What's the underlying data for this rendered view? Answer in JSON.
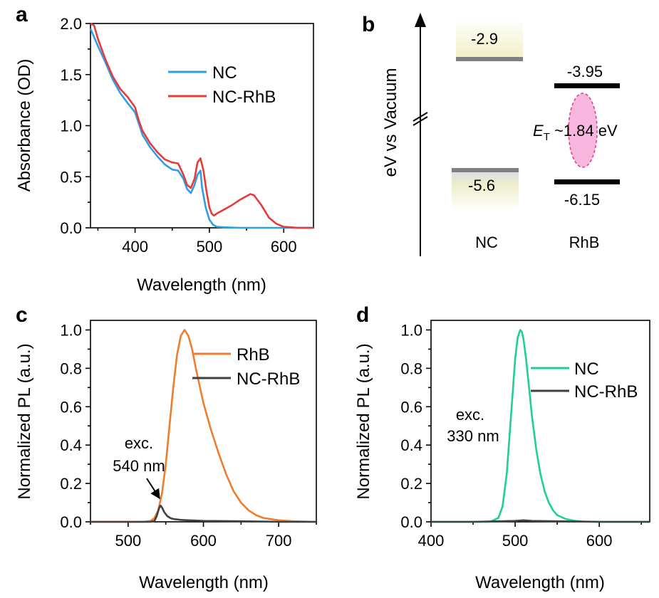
{
  "panels": {
    "a": {
      "letter": "a",
      "chart_data": {
        "type": "line",
        "title": "",
        "xlabel": "Wavelength (nm)",
        "ylabel": "Absorbance (OD)",
        "xlim": [
          340,
          640
        ],
        "ylim": [
          0,
          2.0
        ],
        "xticks": [
          400,
          500,
          600
        ],
        "yticks": [
          0.0,
          0.5,
          1.0,
          1.5,
          2.0
        ],
        "ytick_labels": [
          "0.0",
          "0.5",
          "1.0",
          "1.5",
          "2.0"
        ],
        "legend_position": "top-right",
        "series": [
          {
            "name": "NC",
            "color": "#2f9ee6",
            "x": [
              340,
              350,
              360,
              370,
              380,
              390,
              400,
              405,
              410,
              420,
              430,
              440,
              450,
              458,
              465,
              470,
              475,
              480,
              484,
              488,
              490,
              495,
              500,
              505,
              510,
              520,
              540,
              560,
              580,
              600,
              620,
              640
            ],
            "y": [
              1.95,
              1.78,
              1.62,
              1.45,
              1.32,
              1.22,
              1.13,
              1.02,
              0.91,
              0.79,
              0.7,
              0.62,
              0.57,
              0.56,
              0.48,
              0.38,
              0.34,
              0.42,
              0.52,
              0.56,
              0.4,
              0.2,
              0.08,
              0.03,
              0.01,
              0.005,
              0.0,
              0.0,
              0.0,
              0.0,
              0.0,
              0.0
            ]
          },
          {
            "name": "NC-RhB",
            "color": "#e63b3b",
            "x": [
              340,
              345,
              350,
              360,
              370,
              380,
              390,
              400,
              405,
              410,
              420,
              430,
              440,
              450,
              458,
              465,
              470,
              475,
              480,
              484,
              488,
              492,
              496,
              500,
              503,
              506,
              510,
              520,
              530,
              540,
              550,
              555,
              560,
              570,
              580,
              590,
              600,
              620,
              640
            ],
            "y": [
              2.0,
              1.98,
              1.85,
              1.65,
              1.48,
              1.36,
              1.28,
              1.18,
              1.05,
              0.95,
              0.83,
              0.74,
              0.67,
              0.64,
              0.63,
              0.52,
              0.42,
              0.39,
              0.48,
              0.64,
              0.68,
              0.56,
              0.36,
              0.2,
              0.14,
              0.12,
              0.14,
              0.18,
              0.22,
              0.27,
              0.31,
              0.33,
              0.32,
              0.22,
              0.1,
              0.04,
              0.01,
              0.0,
              0.0
            ]
          }
        ]
      }
    },
    "b": {
      "letter": "b",
      "ylabel": "eV vs Vacuum",
      "levels": {
        "nc_top": "-2.9",
        "nc_bottom": "-5.6",
        "rhb_top": "-3.95",
        "rhb_bottom": "-6.15"
      },
      "gap_label_prefix": "E",
      "gap_label_sub": "T",
      "gap_label_value": " ~1.84 eV",
      "nc_label": "NC",
      "rhb_label": "RhB",
      "colors": {
        "level_bar": "#808080",
        "rhb_bar": "#000000",
        "halo": "#f3f1c6",
        "ellipse_fill": "#f7b6dd",
        "ellipse_stroke": "#e0408f"
      }
    },
    "c": {
      "letter": "c",
      "exc_line1": "exc.",
      "exc_line2": "540 nm",
      "chart_data": {
        "type": "line",
        "title": "",
        "xlabel": "Wavelength (nm)",
        "ylabel": "Normalized PL (a.u.)",
        "xlim": [
          450,
          750
        ],
        "ylim": [
          0,
          1.05
        ],
        "xticks": [
          500,
          600,
          700
        ],
        "yticks": [
          0.0,
          0.2,
          0.4,
          0.6,
          0.8,
          1.0
        ],
        "ytick_labels": [
          "0.0",
          "0.2",
          "0.4",
          "0.6",
          "0.8",
          "1.0"
        ],
        "legend_position": "top-right",
        "series": [
          {
            "name": "RhB",
            "color": "#ee7d2f",
            "x": [
              450,
              520,
              530,
              535,
              540,
              545,
              550,
              555,
              560,
              565,
              570,
              575,
              580,
              585,
              590,
              600,
              610,
              620,
              630,
              640,
              650,
              660,
              670,
              680,
              700,
              720,
              750
            ],
            "y": [
              0.0,
              0.0,
              0.005,
              0.02,
              0.06,
              0.15,
              0.3,
              0.5,
              0.7,
              0.87,
              0.97,
              1.0,
              0.97,
              0.9,
              0.8,
              0.62,
              0.48,
              0.36,
              0.25,
              0.16,
              0.1,
              0.06,
              0.035,
              0.02,
              0.008,
              0.003,
              0.0
            ]
          },
          {
            "name": "NC-RhB",
            "color": "#404040",
            "x": [
              450,
              530,
              535,
              538,
              541,
              543,
              545,
              548,
              552,
              556,
              560,
              570,
              580,
              600,
              650,
              700,
              750
            ],
            "y": [
              0.0,
              0.0,
              0.005,
              0.03,
              0.07,
              0.085,
              0.075,
              0.05,
              0.03,
              0.02,
              0.015,
              0.01,
              0.008,
              0.005,
              0.003,
              0.0,
              0.0
            ]
          }
        ]
      }
    },
    "d": {
      "letter": "d",
      "exc_line1": "exc.",
      "exc_line2": "330 nm",
      "chart_data": {
        "type": "line",
        "title": "",
        "xlabel": "Wavelength (nm)",
        "ylabel": "Normalized PL (a.u.)",
        "xlim": [
          400,
          660
        ],
        "ylim": [
          0,
          1.05
        ],
        "xticks": [
          400,
          500,
          600
        ],
        "yticks": [
          0.0,
          0.2,
          0.4,
          0.6,
          0.8,
          1.0
        ],
        "ytick_labels": [
          "0.0",
          "0.2",
          "0.4",
          "0.6",
          "0.8",
          "1.0"
        ],
        "legend_position": "top-right",
        "series": [
          {
            "name": "NC",
            "color": "#1fcf93",
            "x": [
              400,
              470,
              480,
              485,
              490,
              495,
              500,
              503,
              506,
              508,
              510,
              513,
              516,
              520,
              525,
              530,
              535,
              540,
              545,
              550,
              560,
              570,
              580,
              600,
              660
            ],
            "y": [
              0.0,
              0.0,
              0.02,
              0.08,
              0.25,
              0.55,
              0.85,
              0.96,
              1.0,
              0.99,
              0.95,
              0.85,
              0.72,
              0.55,
              0.38,
              0.25,
              0.16,
              0.1,
              0.06,
              0.035,
              0.015,
              0.006,
              0.002,
              0.0,
              0.0
            ]
          },
          {
            "name": "NC-RhB",
            "color": "#404040",
            "x": [
              400,
              450,
              500,
              510,
              520,
              550,
              600,
              660
            ],
            "y": [
              0.0,
              0.0,
              0.005,
              0.008,
              0.005,
              0.003,
              0.0,
              0.0
            ]
          }
        ]
      }
    }
  }
}
